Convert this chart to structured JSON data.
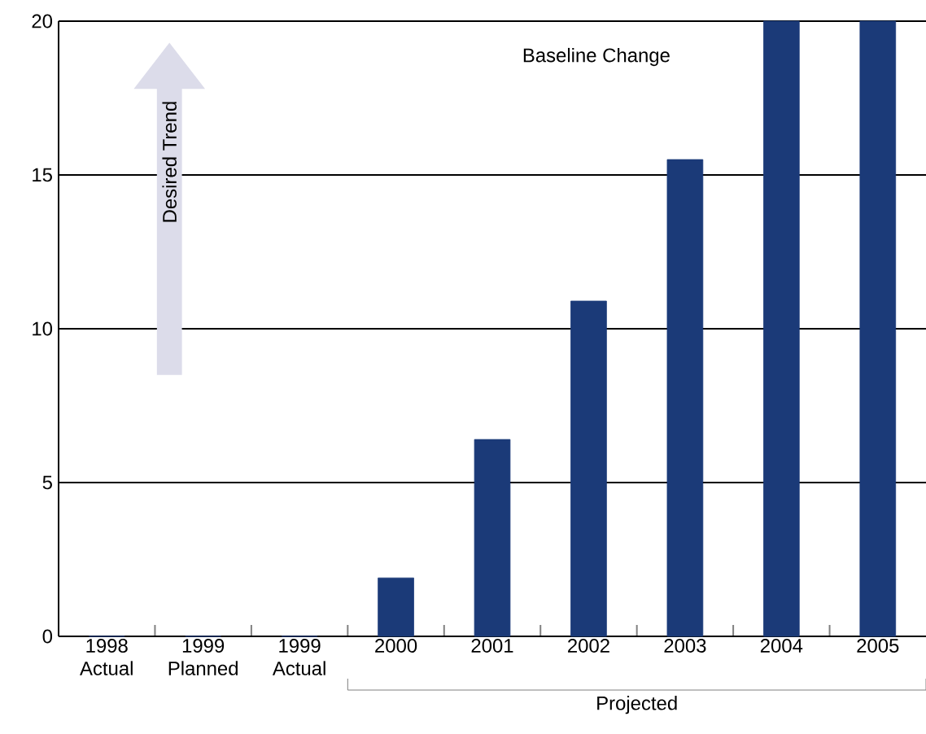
{
  "chart_data": {
    "type": "bar",
    "title": "Baseline Change",
    "categories": [
      "1998 Actual",
      "1999 Planned",
      "1999 Actual",
      "2000",
      "2001",
      "2002",
      "2003",
      "2004",
      "2005"
    ],
    "values": [
      0,
      0,
      0,
      1.9,
      6.4,
      10.9,
      15.5,
      20,
      20
    ],
    "color": "#1b3a78",
    "ylim": [
      0,
      20
    ],
    "yticks": [
      0,
      5,
      10,
      15,
      20
    ],
    "grid": "y",
    "annotations": [
      "Desired Trend",
      "Projected"
    ]
  }
}
